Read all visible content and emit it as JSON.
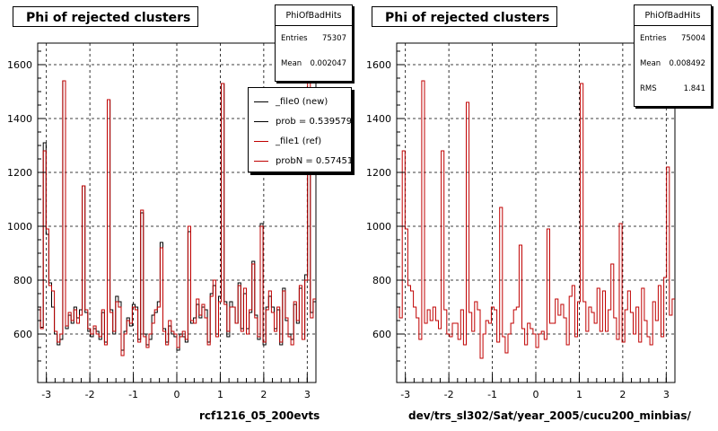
{
  "chart_data": [
    {
      "type": "histogram",
      "title": "Phi of rejected clusters",
      "xlabel": "rcf1216_05_200evts",
      "xlim": [
        -3.2,
        3.2
      ],
      "ylim": [
        420,
        1680
      ],
      "xticks": [
        "-3",
        "-2",
        "-1",
        "0",
        "1",
        "2",
        "3"
      ],
      "yticks": [
        "600",
        "800",
        "1000",
        "1200",
        "1400",
        "1600"
      ],
      "grid": true,
      "legend_position": "top-right",
      "series": [
        {
          "name": "_file0 (new)",
          "color": "#000000",
          "values": [
            690,
            625,
            1310,
            970,
            790,
            700,
            600,
            560,
            580,
            1540,
            620,
            670,
            640,
            700,
            660,
            690,
            1150,
            680,
            610,
            590,
            620,
            610,
            580,
            680,
            570,
            1470,
            690,
            600,
            740,
            720,
            540,
            610,
            660,
            630,
            710,
            700,
            580,
            1050,
            600,
            560,
            580,
            670,
            680,
            720,
            940,
            620,
            570,
            630,
            600,
            590,
            540,
            600,
            590,
            570,
            980,
            640,
            660,
            710,
            660,
            700,
            690,
            570,
            750,
            780,
            600,
            740,
            1530,
            720,
            590,
            720,
            700,
            640,
            790,
            620,
            750,
            620,
            680,
            870,
            670,
            580,
            1010,
            560,
            700,
            740,
            700,
            620,
            690,
            560,
            770,
            650,
            600,
            580,
            710,
            640,
            770,
            580,
            820,
            1210,
            680,
            720
          ]
        },
        {
          "name": "_file1 (ref)",
          "color": "#c00000",
          "values": [
            700,
            620,
            1280,
            990,
            780,
            760,
            610,
            570,
            600,
            1540,
            630,
            680,
            650,
            690,
            640,
            670,
            1150,
            690,
            620,
            600,
            630,
            600,
            590,
            690,
            560,
            1470,
            680,
            610,
            720,
            700,
            520,
            600,
            650,
            640,
            700,
            690,
            570,
            1060,
            590,
            550,
            600,
            640,
            690,
            700,
            920,
            610,
            560,
            650,
            610,
            600,
            550,
            590,
            610,
            580,
            1000,
            650,
            640,
            730,
            670,
            710,
            660,
            560,
            740,
            800,
            590,
            720,
            1530,
            710,
            610,
            700,
            700,
            640,
            780,
            610,
            770,
            600,
            690,
            860,
            660,
            590,
            1000,
            570,
            690,
            760,
            680,
            610,
            700,
            570,
            760,
            660,
            590,
            560,
            720,
            650,
            780,
            580,
            800,
            1600,
            660,
            730
          ]
        }
      ],
      "legend": [
        {
          "label": "_file0 (new)",
          "color": "#000000"
        },
        {
          "label": "prob = 0.539579",
          "color": "#000000"
        },
        {
          "label": "_file1 (ref)",
          "color": "#c00000"
        },
        {
          "label": "probN = 0.574515",
          "color": "#c00000"
        }
      ],
      "stats": {
        "name": "PhiOfBadHits",
        "rows": [
          {
            "label": "Entries",
            "value": "75307"
          },
          {
            "label": "Mean",
            "value": "0.002047"
          }
        ]
      }
    },
    {
      "type": "histogram",
      "title": "Phi of rejected clusters",
      "xlabel": "dev/trs_sl302/Sat/year_2005/cucu200_minbias/",
      "xlim": [
        -3.2,
        3.2
      ],
      "ylim": [
        420,
        1680
      ],
      "xticks": [
        "-3",
        "-2",
        "-1",
        "0",
        "1",
        "2",
        "3"
      ],
      "yticks": [
        "600",
        "800",
        "1000",
        "1200",
        "1400",
        "1600"
      ],
      "grid": true,
      "series": [
        {
          "name": "",
          "color": "#c00000",
          "values": [
            700,
            660,
            1280,
            990,
            780,
            760,
            700,
            660,
            580,
            1540,
            640,
            690,
            650,
            700,
            650,
            620,
            1280,
            690,
            600,
            590,
            640,
            640,
            580,
            690,
            560,
            1460,
            680,
            610,
            720,
            690,
            510,
            600,
            650,
            640,
            700,
            690,
            570,
            1070,
            590,
            530,
            600,
            640,
            690,
            700,
            930,
            620,
            560,
            640,
            620,
            600,
            550,
            600,
            610,
            580,
            990,
            640,
            640,
            730,
            670,
            710,
            660,
            560,
            740,
            780,
            590,
            720,
            1530,
            720,
            610,
            700,
            680,
            640,
            770,
            610,
            760,
            610,
            690,
            860,
            660,
            580,
            1010,
            570,
            690,
            760,
            680,
            600,
            700,
            570,
            770,
            650,
            590,
            560,
            720,
            650,
            780,
            590,
            810,
            1220,
            670,
            730
          ]
        }
      ],
      "stats": {
        "name": "PhiOfBadHits",
        "rows": [
          {
            "label": "Entries",
            "value": "75004"
          },
          {
            "label": "Mean",
            "value": "0.008492"
          },
          {
            "label": "RMS",
            "value": "1.841"
          }
        ]
      }
    }
  ]
}
